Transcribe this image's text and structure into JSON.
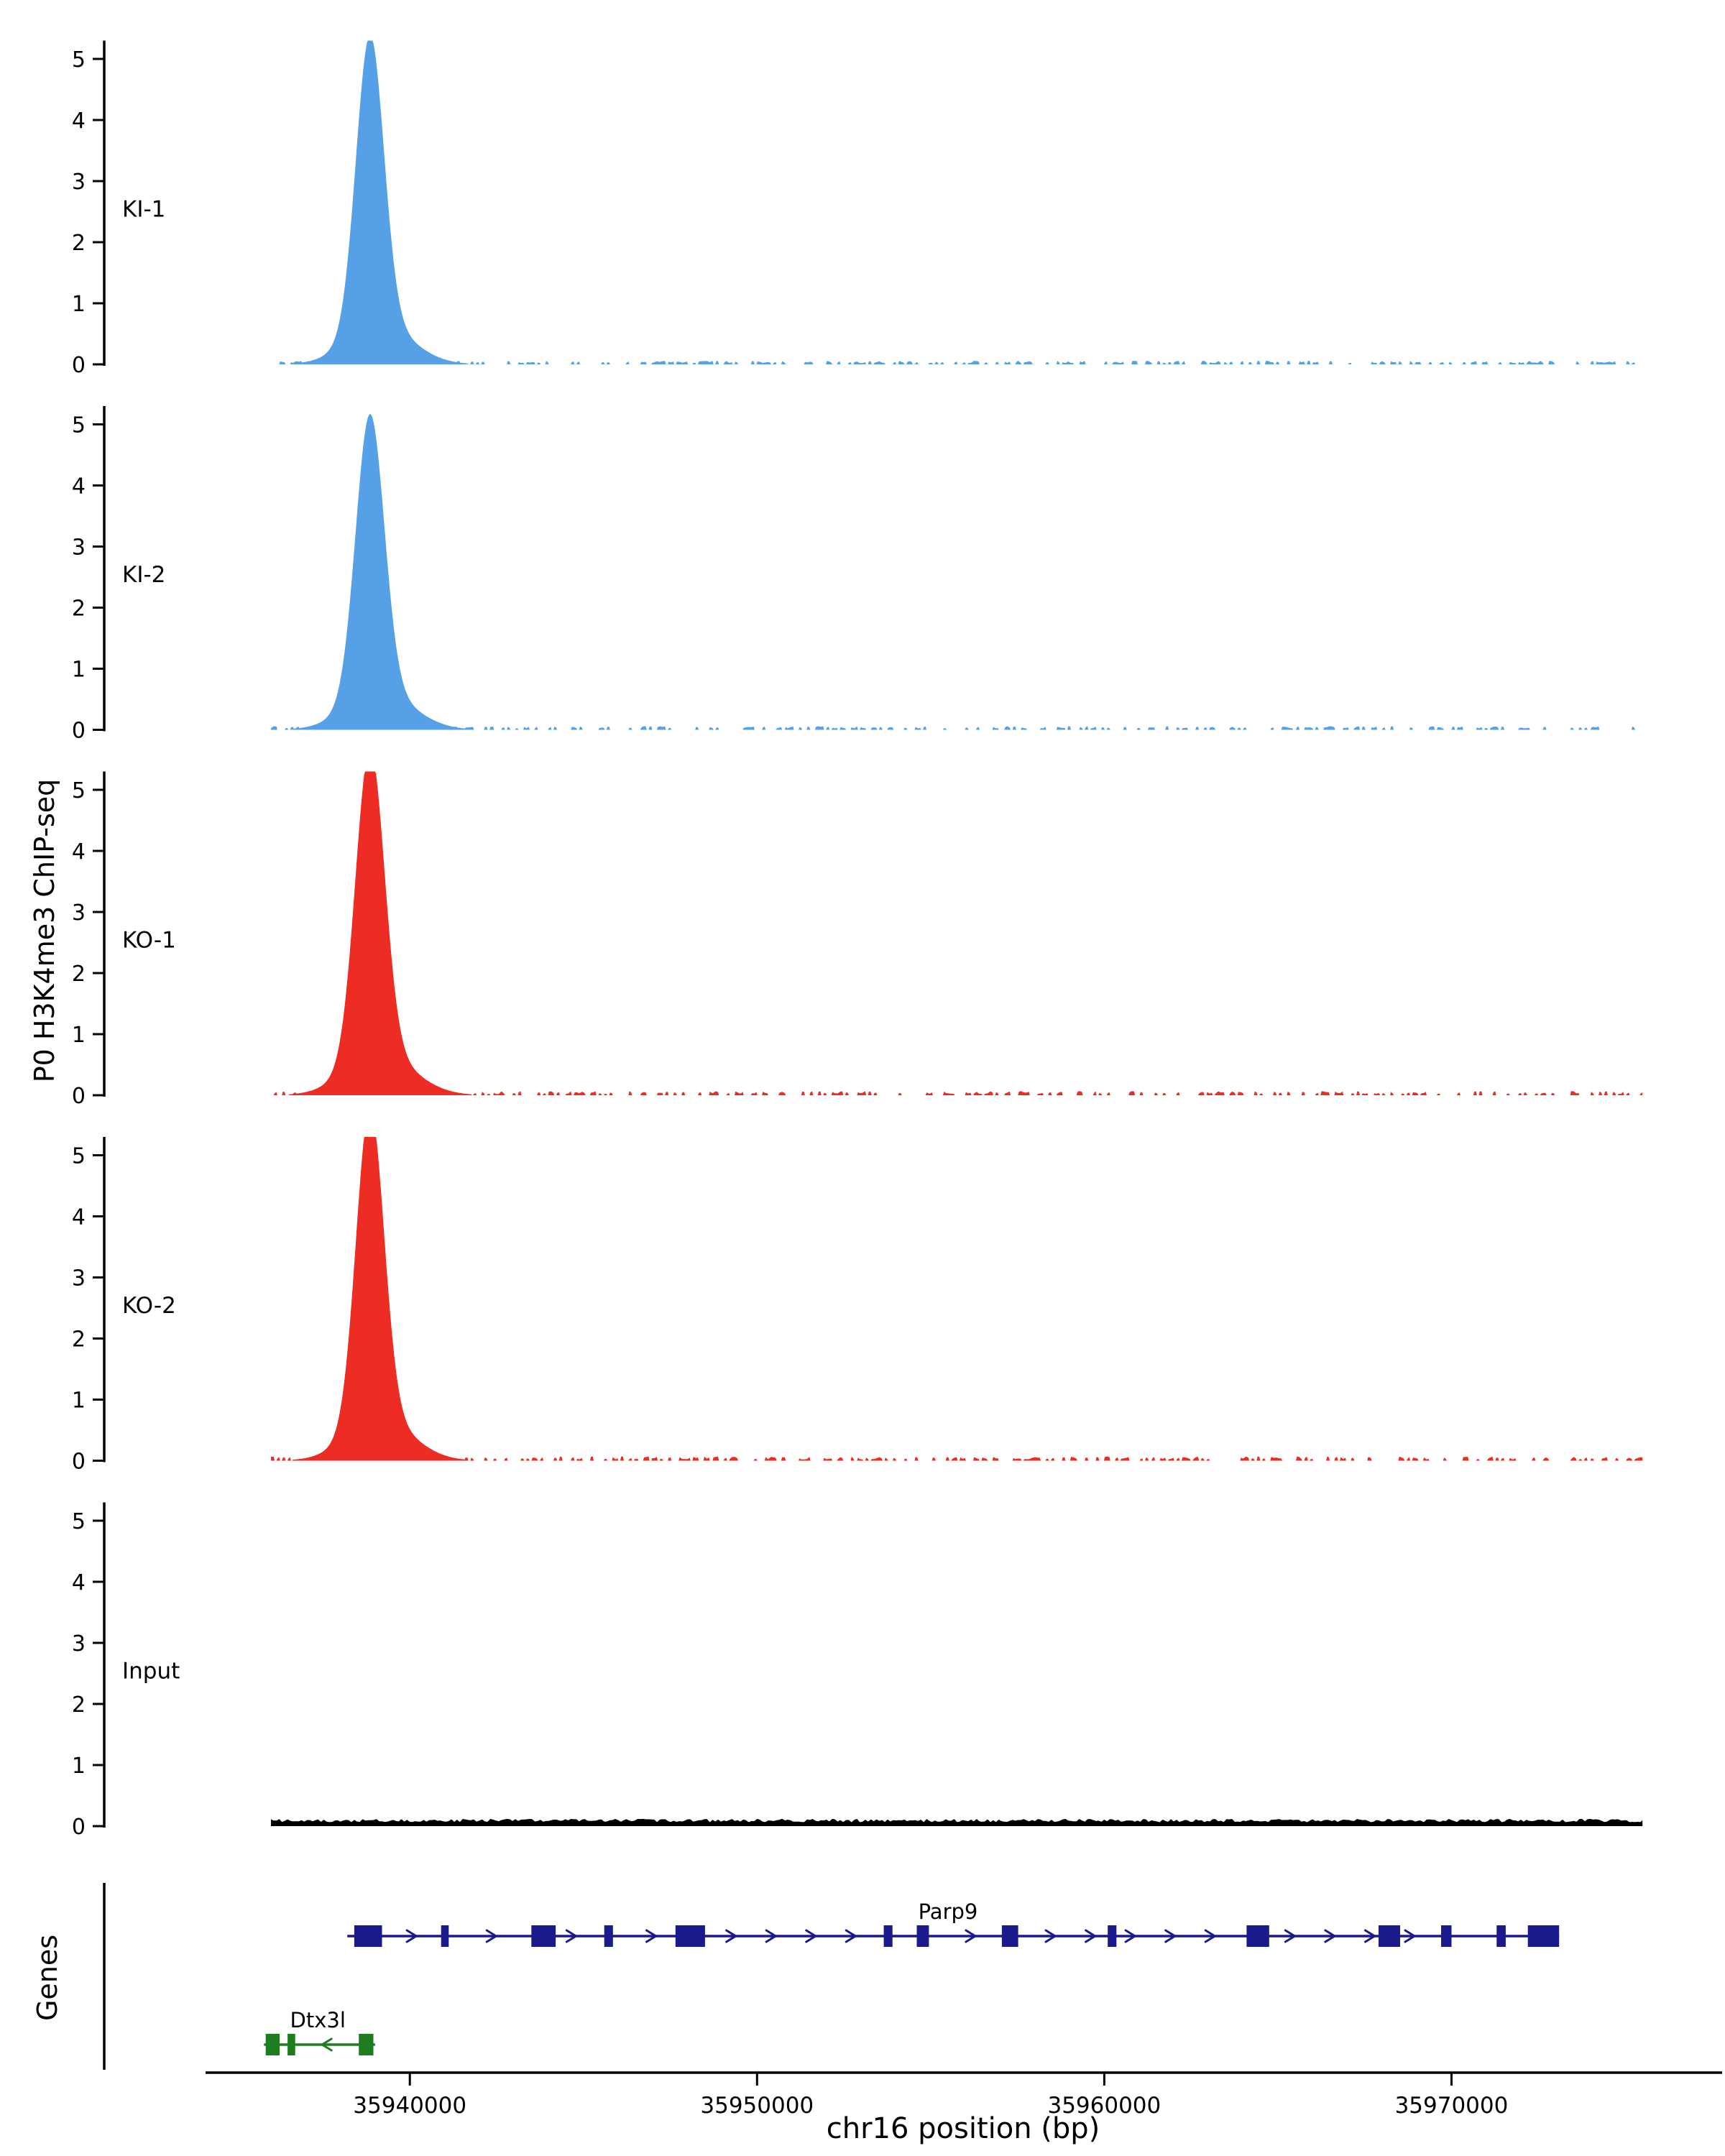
{
  "chart_data": {
    "type": "area",
    "title": "",
    "ylabel": "P0 H3K4me3 ChIP-seq",
    "xlabel": "chr16 position (bp)",
    "genes_label": "Genes",
    "x_domain": [
      35934200,
      35975600
    ],
    "x_ticks": [
      35940000,
      35950000,
      35960000,
      35970000
    ],
    "y_ticks": [
      0,
      1,
      2,
      3,
      4,
      5
    ],
    "ylim": [
      0,
      5.3
    ],
    "coverage_start": 35936000,
    "coverage_end": 35975500,
    "tracks": [
      {
        "name": "KI-1",
        "color": "#55a0e6",
        "peak": {
          "center": 35938850,
          "height": 4.8,
          "sigma": 400
        },
        "noise": 0.04,
        "seed": 1
      },
      {
        "name": "KI-2",
        "color": "#55a0e6",
        "peak": {
          "center": 35938850,
          "height": 4.6,
          "sigma": 410
        },
        "noise": 0.04,
        "seed": 2
      },
      {
        "name": "KO-1",
        "color": "#ed2c24",
        "peak": {
          "center": 35938850,
          "height": 5.05,
          "sigma": 415
        },
        "noise": 0.05,
        "seed": 3
      },
      {
        "name": "KO-2",
        "color": "#ed2c24",
        "peak": {
          "center": 35938850,
          "height": 5.15,
          "sigma": 400
        },
        "noise": 0.05,
        "seed": 4
      },
      {
        "name": "Input",
        "color": "#000000",
        "peak": null,
        "noise": 0.08,
        "seed": 5
      }
    ],
    "genes": [
      {
        "name": "Parp9",
        "color": "#1a1a8c",
        "strand": "+",
        "start": 35938200,
        "end": 35973100,
        "label_pos": 35955500,
        "exons": [
          [
            35938400,
            35939200
          ],
          [
            35940900,
            35941120
          ],
          [
            35943500,
            35944200
          ],
          [
            35945600,
            35945850
          ],
          [
            35947650,
            35948500
          ],
          [
            35953650,
            35953900
          ],
          [
            35954600,
            35954950
          ],
          [
            35957050,
            35957520
          ],
          [
            35960100,
            35960350
          ],
          [
            35964100,
            35964750
          ],
          [
            35967900,
            35968520
          ],
          [
            35969700,
            35970000
          ],
          [
            35971300,
            35971560
          ],
          [
            35972200,
            35973100
          ]
        ]
      },
      {
        "name": "Dtx3l",
        "color": "#1e7d1e",
        "strand": "-",
        "start": 35935800,
        "end": 35939000,
        "label_pos": 35937350,
        "exons": [
          [
            35935850,
            35936250
          ],
          [
            35936480,
            35936700
          ],
          [
            35938530,
            35938950
          ]
        ]
      }
    ]
  }
}
